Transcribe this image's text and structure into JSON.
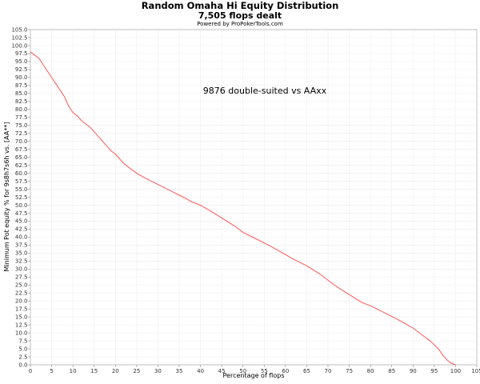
{
  "header": {
    "title": "Random Omaha Hi Equity Distribution",
    "subtitle": "7,505 flops dealt",
    "powered_by": "Powered by ProPokerTools.com"
  },
  "chart_data": {
    "type": "line",
    "title": "Random Omaha Hi Equity Distribution",
    "subtitle": "7,505 flops dealt",
    "xlabel": "Percentage of flops",
    "ylabel": "Minimum Pot equity % for 9s8h7s6h vs. [AA**]",
    "xlim": [
      0,
      105
    ],
    "ylim": [
      0,
      105
    ],
    "x_ticks": [
      "0",
      "5",
      "10",
      "15",
      "20",
      "25",
      "30",
      "35",
      "40",
      "45",
      "50",
      "55",
      "60",
      "65",
      "70",
      "75",
      "80",
      "85",
      "90",
      "95",
      "100",
      "105"
    ],
    "y_ticks": [
      "0.0",
      "2.5",
      "5.0",
      "7.5",
      "10.0",
      "12.5",
      "15.0",
      "17.5",
      "20.0",
      "22.5",
      "25.0",
      "27.5",
      "30.0",
      "32.5",
      "35.0",
      "37.5",
      "40.0",
      "42.5",
      "45.0",
      "47.5",
      "50.0",
      "52.5",
      "55.0",
      "57.5",
      "60.0",
      "62.5",
      "65.0",
      "67.5",
      "70.0",
      "72.5",
      "75.0",
      "77.5",
      "80.0",
      "82.5",
      "85.0",
      "87.5",
      "90.0",
      "92.5",
      "95.0",
      "97.5",
      "100.0",
      "102.5",
      "105.0"
    ],
    "grid": true,
    "annotation": "9876 double-suited vs AAxx",
    "series": [
      {
        "color": "#ff5555",
        "x": [
          0,
          1,
          2,
          3,
          4,
          5,
          6,
          7,
          8,
          9,
          10,
          11,
          12,
          13,
          14,
          15,
          16,
          17,
          18,
          19,
          20,
          21,
          22,
          23,
          24,
          25,
          27,
          30,
          33,
          36,
          38,
          40,
          42,
          45,
          48,
          50,
          53,
          56,
          60,
          62,
          65,
          68,
          70,
          72,
          75,
          78,
          80,
          83,
          86,
          88,
          90,
          92,
          94,
          96,
          97,
          98,
          99,
          100
        ],
        "y": [
          98,
          97,
          96,
          94,
          92,
          90,
          88,
          86,
          84,
          81,
          79,
          78,
          76.5,
          75.5,
          74.5,
          73,
          71.5,
          70,
          68.5,
          67,
          66,
          64.5,
          63,
          62,
          61,
          60,
          58.5,
          56.5,
          54.5,
          52.5,
          51,
          50,
          48.5,
          46,
          43.5,
          41.5,
          39.5,
          37.5,
          34.5,
          33,
          31,
          28.5,
          26.5,
          24.5,
          22,
          19.5,
          18.5,
          16.5,
          14.5,
          13,
          11.5,
          9.5,
          7.5,
          5,
          3,
          1.5,
          0.5,
          0
        ]
      }
    ]
  }
}
